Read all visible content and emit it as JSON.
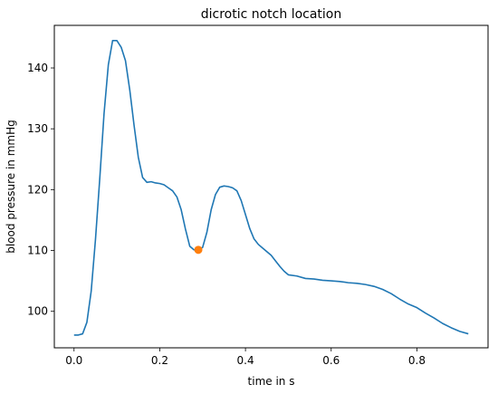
{
  "chart_data": {
    "type": "line",
    "title": "dicrotic notch location",
    "xlabel": "time in s",
    "ylabel": "blood pressure in mmHg",
    "xlim": [
      -0.046,
      0.966
    ],
    "ylim": [
      94.0,
      147.0
    ],
    "xticks": [
      0.0,
      0.2,
      0.4,
      0.6,
      0.8
    ],
    "xtick_labels": [
      "0.0",
      "0.2",
      "0.4",
      "0.6",
      "0.8"
    ],
    "yticks": [
      100,
      110,
      120,
      130,
      140
    ],
    "ytick_labels": [
      "100",
      "110",
      "120",
      "130",
      "140"
    ],
    "grid": false,
    "series": [
      {
        "color": "#1f77b4",
        "x": [
          0.0,
          0.01,
          0.02,
          0.03,
          0.04,
          0.05,
          0.06,
          0.07,
          0.08,
          0.09,
          0.1,
          0.11,
          0.12,
          0.13,
          0.14,
          0.15,
          0.16,
          0.17,
          0.18,
          0.19,
          0.2,
          0.21,
          0.22,
          0.23,
          0.24,
          0.25,
          0.26,
          0.27,
          0.28,
          0.29,
          0.3,
          0.31,
          0.32,
          0.33,
          0.34,
          0.35,
          0.36,
          0.37,
          0.38,
          0.39,
          0.4,
          0.41,
          0.42,
          0.43,
          0.44,
          0.45,
          0.46,
          0.47,
          0.48,
          0.49,
          0.5,
          0.52,
          0.54,
          0.56,
          0.58,
          0.6,
          0.62,
          0.64,
          0.66,
          0.68,
          0.7,
          0.72,
          0.74,
          0.76,
          0.78,
          0.8,
          0.82,
          0.84,
          0.86,
          0.88,
          0.9,
          0.92
        ],
        "y": [
          96.1,
          96.1,
          96.3,
          98.2,
          103.3,
          111.8,
          121.8,
          132.5,
          140.5,
          144.5,
          144.5,
          143.4,
          141.2,
          136.4,
          130.6,
          125.3,
          122.0,
          121.2,
          121.3,
          121.1,
          121.0,
          120.8,
          120.3,
          119.8,
          118.8,
          116.7,
          113.5,
          110.7,
          110.1,
          110.1,
          110.5,
          113.0,
          116.7,
          119.2,
          120.4,
          120.6,
          120.5,
          120.3,
          119.8,
          118.2,
          115.9,
          113.6,
          111.9,
          111.0,
          110.4,
          109.8,
          109.2,
          108.3,
          107.4,
          106.6,
          106.0,
          105.8,
          105.4,
          105.3,
          105.1,
          105.0,
          104.9,
          104.7,
          104.6,
          104.4,
          104.1,
          103.6,
          102.9,
          102.0,
          101.2,
          100.6,
          99.7,
          98.9,
          98.0,
          97.3,
          96.7,
          96.3
        ]
      }
    ],
    "highlight_point": {
      "x": 0.29,
      "y": 110.1,
      "color": "#ff7f0e"
    }
  }
}
